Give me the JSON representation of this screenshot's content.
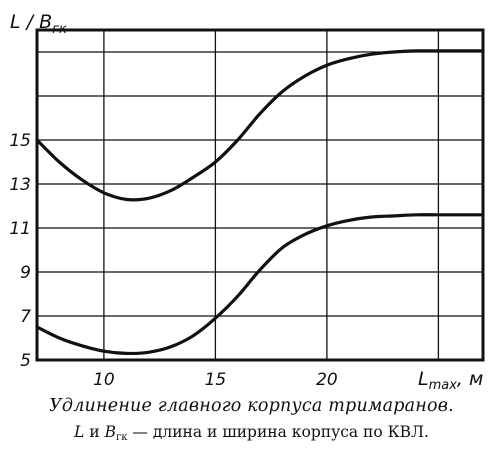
{
  "chart_data": {
    "type": "line",
    "y_axis_label": {
      "main": "L / B",
      "sub": "гк"
    },
    "x_axis_label": {
      "main": "L",
      "sub": "max",
      "unit": ", м"
    },
    "xlim": [
      7,
      27
    ],
    "ylim": [
      5,
      20
    ],
    "x_ticks": [
      10,
      15,
      20
    ],
    "y_ticks": [
      5,
      7,
      9,
      11,
      13,
      15
    ],
    "grid": true,
    "series": [
      {
        "x": [
          7,
          8,
          9,
          10,
          11,
          12,
          13,
          14,
          15,
          16,
          17,
          18,
          19,
          20,
          21,
          22,
          23,
          24,
          25,
          26
        ],
        "y": [
          15.0,
          14.0,
          13.2,
          12.6,
          12.3,
          12.35,
          12.7,
          13.3,
          14.0,
          15.0,
          16.2,
          17.2,
          17.9,
          18.4,
          18.7,
          18.9,
          19.0,
          19.05,
          19.05,
          19.05
        ]
      },
      {
        "x": [
          7,
          8,
          9,
          10,
          11,
          12,
          13,
          14,
          15,
          16,
          17,
          18,
          19,
          20,
          21,
          22,
          23,
          24,
          25,
          26
        ],
        "y": [
          6.5,
          6.0,
          5.65,
          5.4,
          5.3,
          5.35,
          5.6,
          6.1,
          6.9,
          7.9,
          9.1,
          10.1,
          10.7,
          11.1,
          11.35,
          11.5,
          11.55,
          11.6,
          11.6,
          11.6
        ]
      }
    ]
  },
  "caption": {
    "line1": "Удлинение главного корпуса тримаранов.",
    "line2_L": "L",
    "line2_and": " и ",
    "line2_B": "B",
    "line2_sub": "гк",
    "line2_rest": " — длина и ширина корпуса по КВЛ."
  }
}
